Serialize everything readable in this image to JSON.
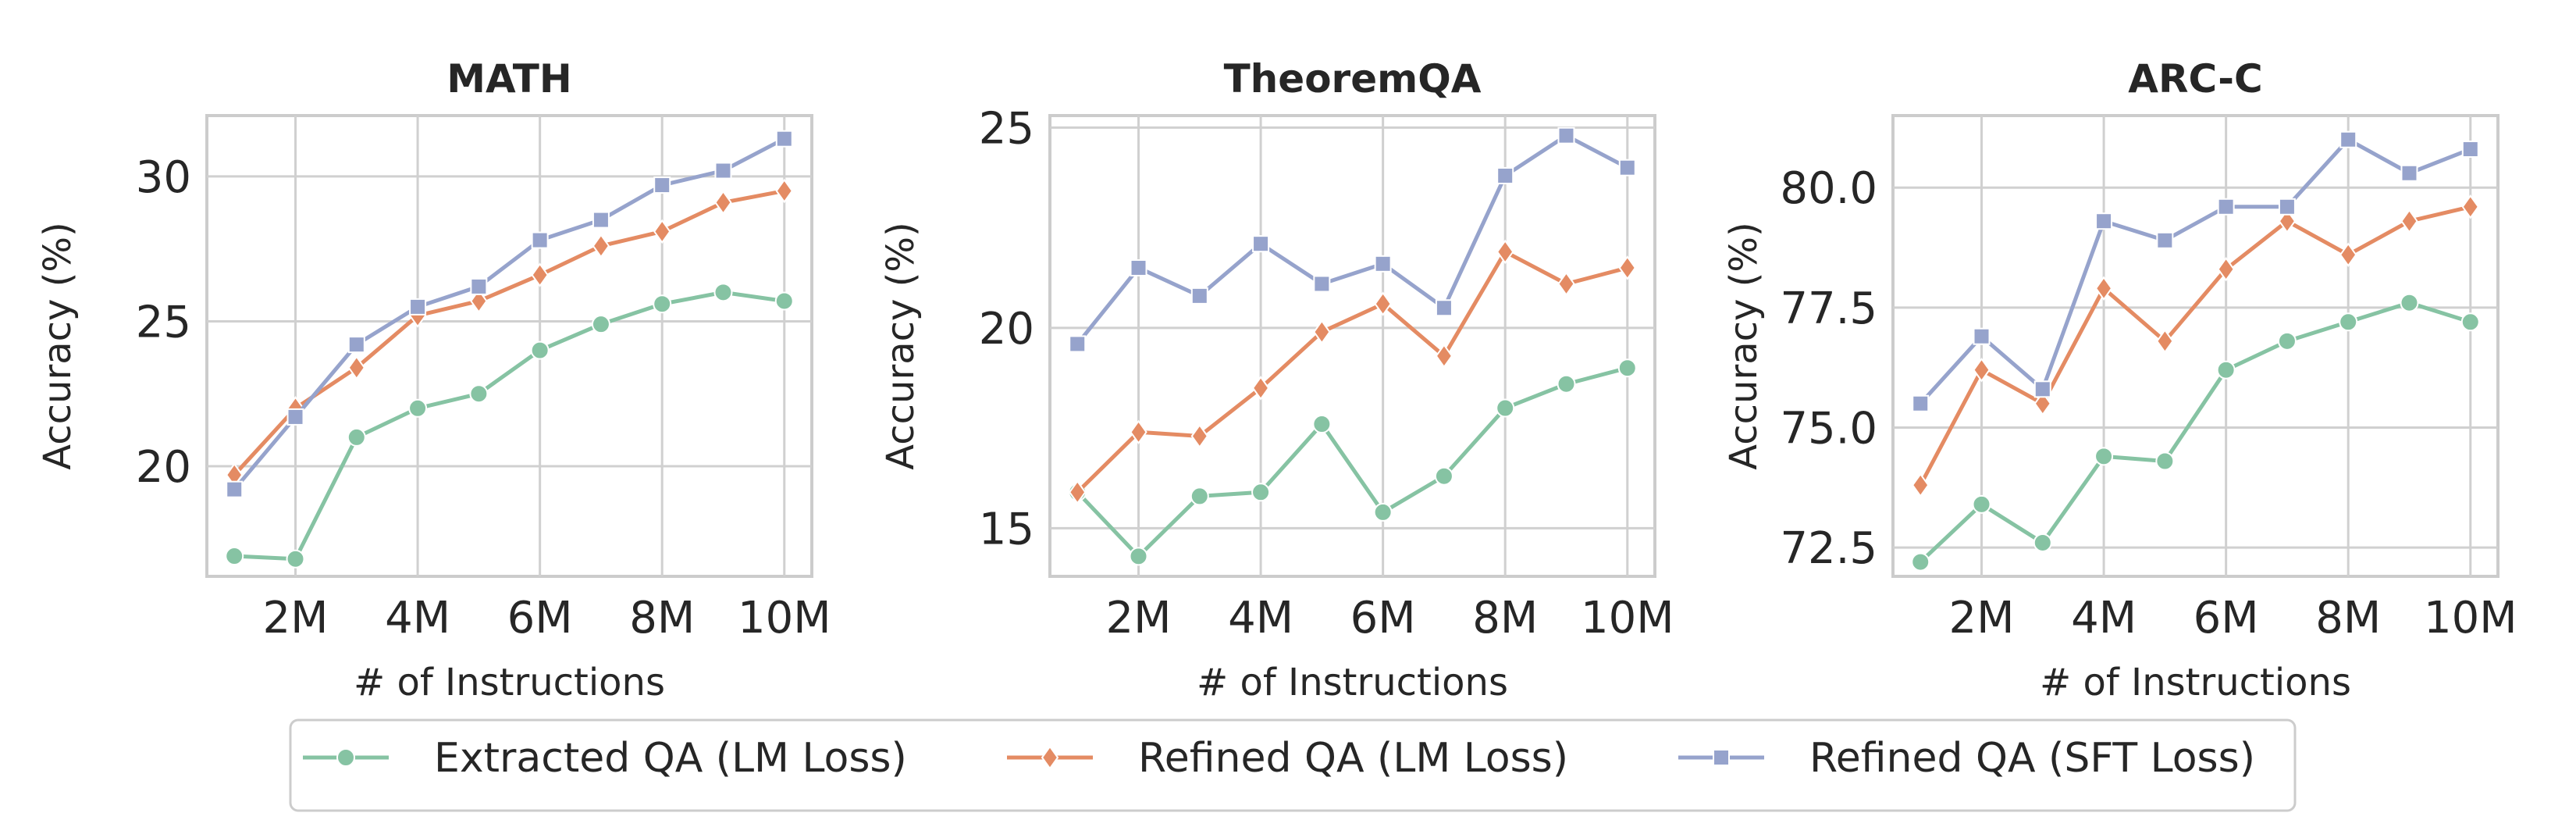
{
  "colors": {
    "extracted_lm": "#86c3a3",
    "refined_lm": "#e48b63",
    "refined_sft": "#96a3cc",
    "grid": "#d0d0d0",
    "frame": "#cccccc"
  },
  "legend": [
    {
      "label": "Extracted QA (LM Loss)",
      "marker": "circle",
      "color": "#86c3a3"
    },
    {
      "label": "Refined QA (LM Loss)",
      "marker": "diamond",
      "color": "#e48b63"
    },
    {
      "label": "Refined QA (SFT Loss)",
      "marker": "square",
      "color": "#96a3cc"
    }
  ],
  "chart_data": [
    {
      "type": "line",
      "title": "MATH",
      "xlabel": "# of Instructions",
      "ylabel": "Accuracy (%)",
      "x": [
        1,
        2,
        3,
        4,
        5,
        6,
        7,
        8,
        9,
        10
      ],
      "xticks": [
        2,
        4,
        6,
        8,
        10
      ],
      "xtick_labels": [
        "2M",
        "4M",
        "6M",
        "8M",
        "10M"
      ],
      "xlim": [
        0.55,
        10.45
      ],
      "yticks": [
        20,
        25,
        30
      ],
      "ytick_labels": [
        "20",
        "25",
        "30"
      ],
      "ylim": [
        16.2,
        32.1
      ],
      "grid": true,
      "series": [
        {
          "name": "Extracted QA (LM Loss)",
          "marker": "circle",
          "color": "#86c3a3",
          "values": [
            16.9,
            16.8,
            21.0,
            22.0,
            22.5,
            24.0,
            24.9,
            25.6,
            26.0,
            25.7
          ]
        },
        {
          "name": "Refined QA (LM Loss)",
          "marker": "diamond",
          "color": "#e48b63",
          "values": [
            19.7,
            22.0,
            23.4,
            25.2,
            25.7,
            26.6,
            27.6,
            28.1,
            29.1,
            29.5
          ]
        },
        {
          "name": "Refined QA (SFT Loss)",
          "marker": "square",
          "color": "#96a3cc",
          "values": [
            19.2,
            21.7,
            24.2,
            25.5,
            26.2,
            27.8,
            28.5,
            29.7,
            30.2,
            31.3
          ]
        }
      ]
    },
    {
      "type": "line",
      "title": "TheoremQA",
      "xlabel": "# of Instructions",
      "ylabel": "Accuracy (%)",
      "x": [
        1,
        2,
        3,
        4,
        5,
        6,
        7,
        8,
        9,
        10
      ],
      "xticks": [
        2,
        4,
        6,
        8,
        10
      ],
      "xtick_labels": [
        "2M",
        "4M",
        "6M",
        "8M",
        "10M"
      ],
      "xlim": [
        0.55,
        10.45
      ],
      "yticks": [
        15,
        20,
        25
      ],
      "ytick_labels": [
        "15",
        "20",
        "25"
      ],
      "ylim": [
        13.8,
        25.3
      ],
      "grid": true,
      "series": [
        {
          "name": "Extracted QA (LM Loss)",
          "marker": "circle",
          "color": "#86c3a3",
          "values": [
            15.9,
            14.3,
            15.8,
            15.9,
            17.6,
            15.4,
            16.3,
            18.0,
            18.6,
            19.0
          ]
        },
        {
          "name": "Refined QA (LM Loss)",
          "marker": "diamond",
          "color": "#e48b63",
          "values": [
            15.9,
            17.4,
            17.3,
            18.5,
            19.9,
            20.6,
            19.3,
            21.9,
            21.1,
            21.5
          ]
        },
        {
          "name": "Refined QA (SFT Loss)",
          "marker": "square",
          "color": "#96a3cc",
          "values": [
            19.6,
            21.5,
            20.8,
            22.1,
            21.1,
            21.6,
            20.5,
            23.8,
            24.8,
            24.0
          ]
        }
      ]
    },
    {
      "type": "line",
      "title": "ARC-C",
      "xlabel": "# of Instructions",
      "ylabel": "Accuracy (%)",
      "x": [
        1,
        2,
        3,
        4,
        5,
        6,
        7,
        8,
        9,
        10
      ],
      "xticks": [
        2,
        4,
        6,
        8,
        10
      ],
      "xtick_labels": [
        "2M",
        "4M",
        "6M",
        "8M",
        "10M"
      ],
      "xlim": [
        0.55,
        10.45
      ],
      "yticks": [
        72.5,
        75.0,
        77.5,
        80.0
      ],
      "ytick_labels": [
        "72.5",
        "75.0",
        "77.5",
        "80.0"
      ],
      "ylim": [
        71.9,
        81.5
      ],
      "grid": true,
      "series": [
        {
          "name": "Extracted QA (LM Loss)",
          "marker": "circle",
          "color": "#86c3a3",
          "values": [
            72.2,
            73.4,
            72.6,
            74.4,
            74.3,
            76.2,
            76.8,
            77.2,
            77.6,
            77.2
          ]
        },
        {
          "name": "Refined QA (LM Loss)",
          "marker": "diamond",
          "color": "#e48b63",
          "values": [
            73.8,
            76.2,
            75.5,
            77.9,
            76.8,
            78.3,
            79.3,
            78.6,
            79.3,
            79.6
          ]
        },
        {
          "name": "Refined QA (SFT Loss)",
          "marker": "square",
          "color": "#96a3cc",
          "values": [
            75.5,
            76.9,
            75.8,
            79.3,
            78.9,
            79.6,
            79.6,
            81.0,
            80.3,
            80.8
          ]
        }
      ]
    }
  ]
}
